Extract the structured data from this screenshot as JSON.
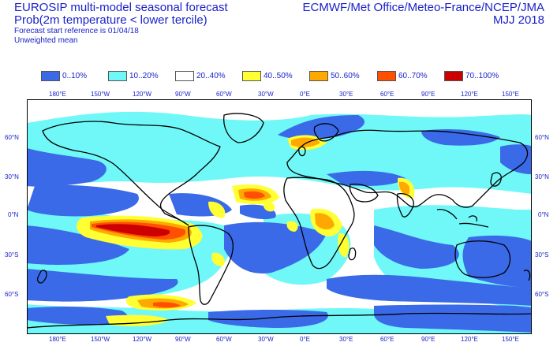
{
  "header": {
    "title_left_1": "EUROSIP multi-model seasonal forecast",
    "title_left_2": "Prob(2m temperature < lower tercile)",
    "title_left_3": "Forecast start reference is 01/04/18",
    "title_left_4": "Unweighted mean",
    "title_right_1": "ECMWF/Met Office/Meteo-France/NCEP/JMA",
    "title_right_2": "MJJ 2018"
  },
  "legend": [
    {
      "label": "0..10%",
      "color": "#3a6ae8"
    },
    {
      "label": "10..20%",
      "color": "#70f8f8"
    },
    {
      "label": "20..40%",
      "color": "#ffffff"
    },
    {
      "label": "40..50%",
      "color": "#ffff33"
    },
    {
      "label": "50..60%",
      "color": "#ffa800"
    },
    {
      "label": "60..70%",
      "color": "#ff5000"
    },
    {
      "label": "70..100%",
      "color": "#cc0000"
    }
  ],
  "axes": {
    "lon_labels_top": [
      "180°E",
      "150°W",
      "120°W",
      "90°W",
      "60°W",
      "30°W",
      "0°E",
      "30°E",
      "60°E",
      "90°E",
      "120°E",
      "150°E"
    ],
    "lon_labels_bottom": [
      "180°E",
      "150°W",
      "120°W",
      "90°W",
      "60°W",
      "30°W",
      "0°E",
      "30°E",
      "60°E",
      "90°E",
      "120°E",
      "150°E"
    ],
    "lat_labels_left": [
      "60°N",
      "30°N",
      "0°N",
      "30°S",
      "60°S"
    ],
    "lat_labels_right": [
      "60°N",
      "30°N",
      "0°N",
      "30°S",
      "60°S"
    ]
  }
}
